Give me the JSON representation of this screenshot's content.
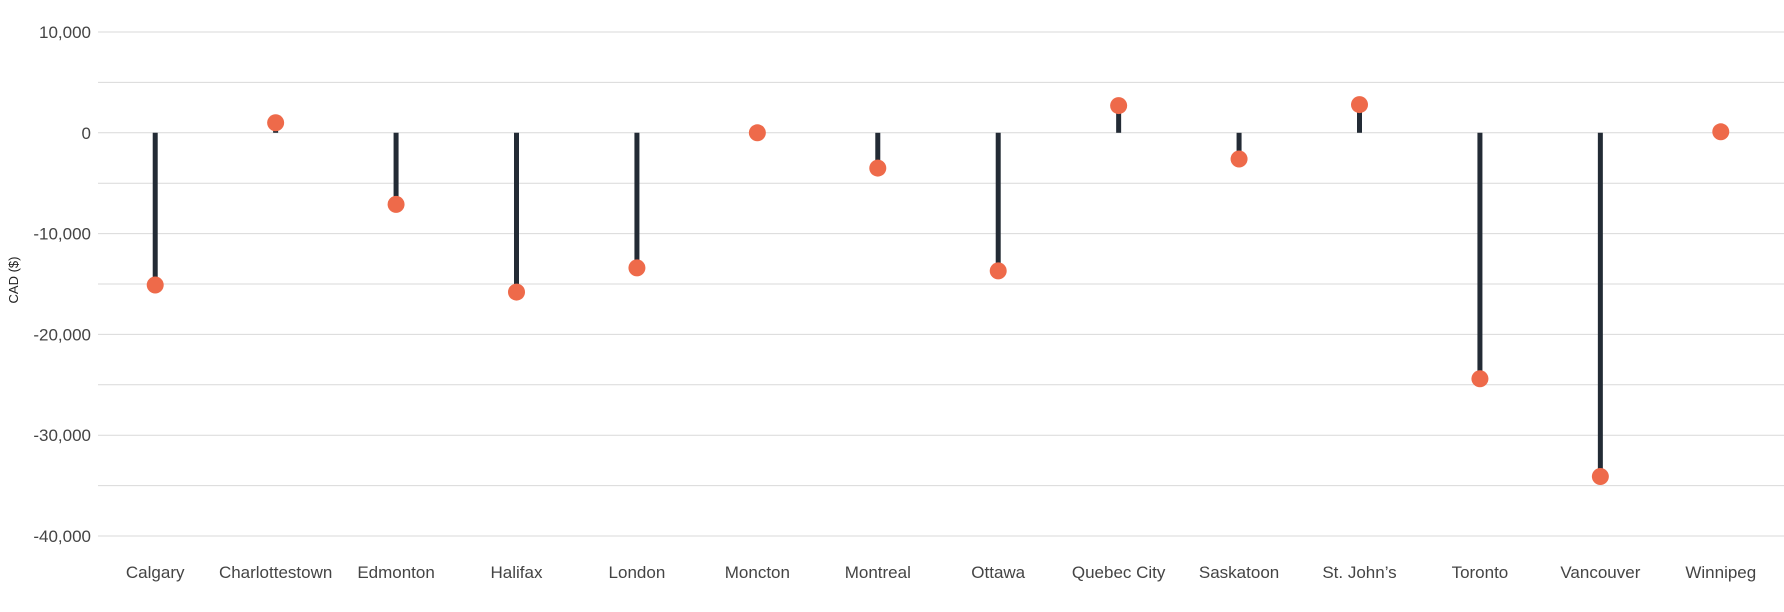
{
  "chart_data": {
    "type": "lollipop",
    "title": "",
    "xlabel": "",
    "ylabel": "CAD ($)",
    "ylim": [
      -40000,
      10000
    ],
    "yticks": [
      10000,
      0,
      -10000,
      -20000,
      -30000,
      -40000
    ],
    "ytick_labels": [
      "10,000",
      "0",
      "-10,000",
      "-20,000",
      "-30,000",
      "-40,000"
    ],
    "minor_gridlines": true,
    "grid": true,
    "legend": "none",
    "categories": [
      "Calgary",
      "Charlottestown",
      "Edmonton",
      "Halifax",
      "London",
      "Moncton",
      "Montreal",
      "Ottawa",
      "Quebec City",
      "Saskatoon",
      "St. John’s",
      "Toronto",
      "Vancouver",
      "Winnipeg"
    ],
    "values": [
      -15100,
      1000,
      -7100,
      -15800,
      -13400,
      0,
      -3500,
      -13700,
      2700,
      -2600,
      2800,
      -24400,
      -34100,
      100
    ],
    "colors": {
      "point": "#EE6A4A",
      "stem": "#232B35",
      "grid": "#D9D9D9"
    }
  }
}
